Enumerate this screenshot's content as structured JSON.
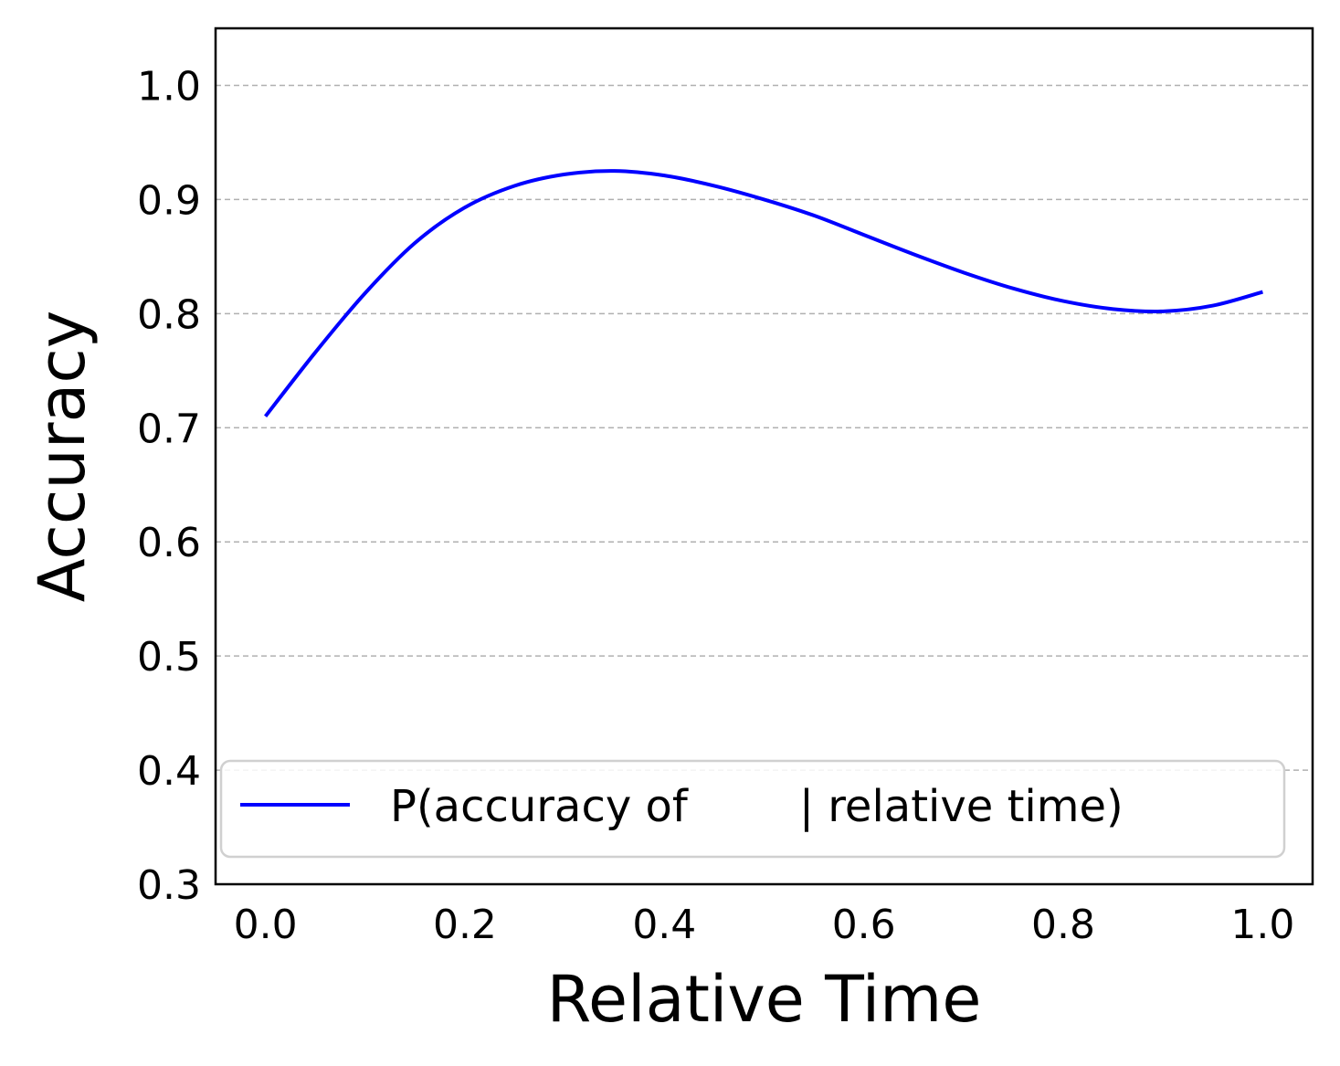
{
  "chart_data": {
    "type": "line",
    "xlabel": "Relative Time",
    "ylabel": "Accuracy",
    "xlim": [
      -0.05,
      1.05
    ],
    "ylim": [
      0.3,
      1.05
    ],
    "xticks": [
      "0.0",
      "0.2",
      "0.4",
      "0.6",
      "0.8",
      "1.0"
    ],
    "yticks": [
      "0.3",
      "0.4",
      "0.5",
      "0.6",
      "0.7",
      "0.8",
      "0.9",
      "1.0"
    ],
    "grid": "horizontal dashed",
    "legend_position": "lower",
    "series": [
      {
        "name": "P(accuracy of        | relative time)",
        "color": "#0000ff",
        "x": [
          0.0,
          0.05,
          0.1,
          0.15,
          0.2,
          0.25,
          0.3,
          0.35,
          0.4,
          0.45,
          0.5,
          0.55,
          0.6,
          0.65,
          0.7,
          0.75,
          0.8,
          0.85,
          0.9,
          0.95,
          1.0
        ],
        "y": [
          0.71,
          0.766,
          0.818,
          0.862,
          0.893,
          0.912,
          0.922,
          0.925,
          0.921,
          0.912,
          0.9,
          0.886,
          0.869,
          0.852,
          0.836,
          0.822,
          0.811,
          0.804,
          0.802,
          0.807,
          0.819
        ]
      }
    ]
  }
}
